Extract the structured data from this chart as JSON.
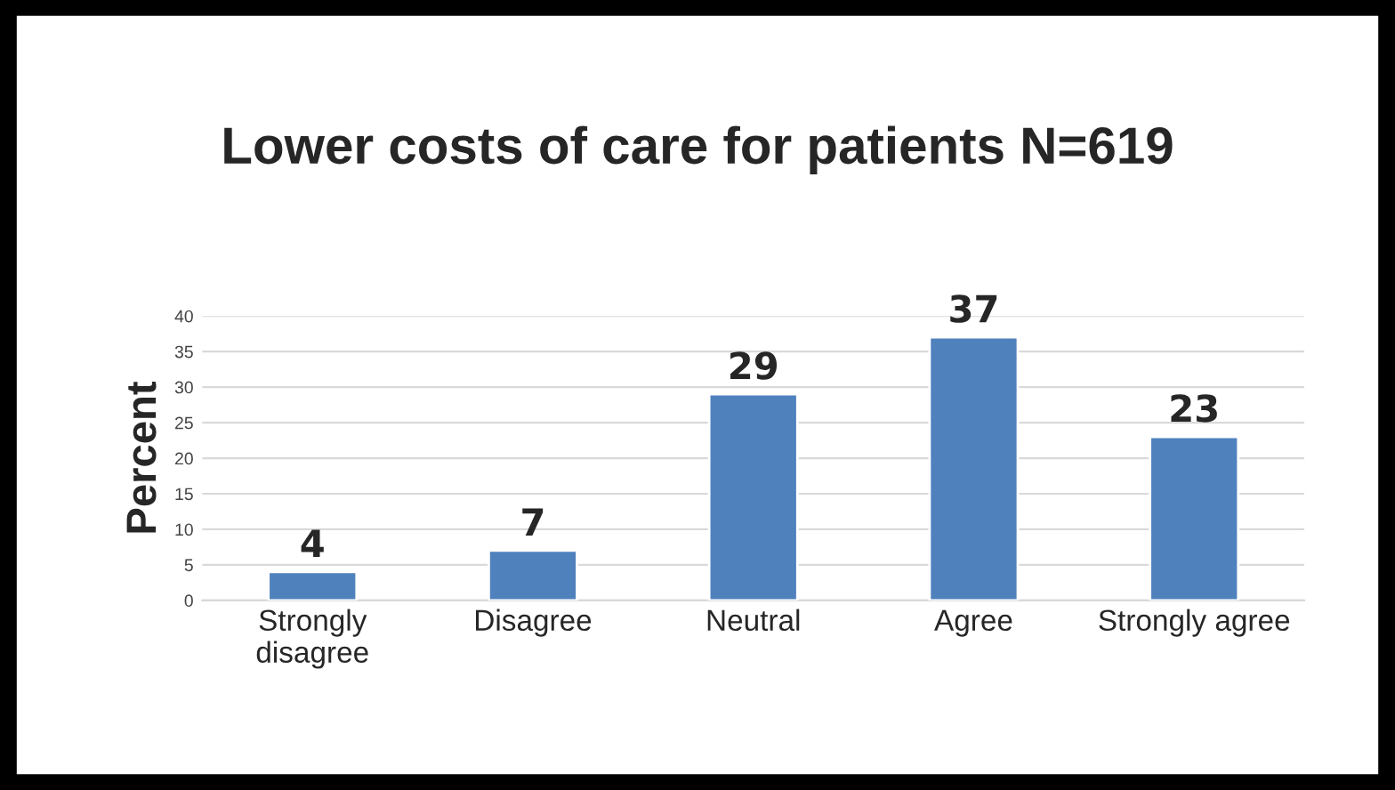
{
  "chart_data": {
    "type": "bar",
    "title": "Lower costs of care for patients N=619",
    "ylabel": "Percent",
    "categories": [
      "Strongly\ndisagree",
      "Disagree",
      "Neutral",
      "Agree",
      "Strongly agree"
    ],
    "values": [
      4,
      7,
      29,
      37,
      23
    ],
    "color": "#4f81bd",
    "ylim": [
      0,
      40
    ],
    "yticks": [
      0,
      5,
      10,
      15,
      20,
      25,
      30,
      35,
      40
    ],
    "grid": "y",
    "data_labels": true
  }
}
